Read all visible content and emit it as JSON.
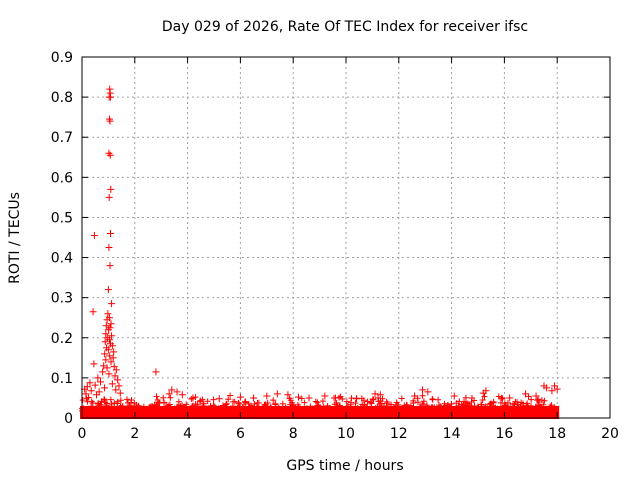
{
  "chart_data": {
    "type": "scatter",
    "title": "Day 029 of 2026, Rate Of TEC Index for receiver ifsc",
    "xlabel": "GPS time / hours",
    "ylabel": "ROTI / TECUs",
    "xlim": [
      0,
      20
    ],
    "ylim": [
      0,
      0.9
    ],
    "xticks": [
      0,
      2,
      4,
      6,
      8,
      10,
      12,
      14,
      16,
      18,
      20
    ],
    "xtick_labels": [
      "0",
      "2",
      "4",
      "6",
      "8",
      "10",
      "12",
      "14",
      "16",
      "18",
      "20"
    ],
    "yticks": [
      0,
      0.1,
      0.2,
      0.3,
      0.4,
      0.5,
      0.6,
      0.7,
      0.8,
      0.9
    ],
    "ytick_labels": [
      "0",
      "0.1",
      "0.2",
      "0.3",
      "0.4",
      "0.5",
      "0.6",
      "0.7",
      "0.8",
      "0.9"
    ],
    "grid": true,
    "marker": "+",
    "color": "#ff0000",
    "x_extent": [
      0,
      18
    ],
    "baseline_band": [
      0.0,
      0.05
    ],
    "series": [
      {
        "name": "ROTI",
        "points": [
          [
            1.05,
            0.82
          ],
          [
            1.07,
            0.81
          ],
          [
            1.03,
            0.8
          ],
          [
            1.08,
            0.8
          ],
          [
            1.04,
            0.745
          ],
          [
            1.06,
            0.74
          ],
          [
            1.02,
            0.66
          ],
          [
            1.07,
            0.655
          ],
          [
            1.09,
            0.57
          ],
          [
            1.03,
            0.55
          ],
          [
            0.47,
            0.455
          ],
          [
            1.08,
            0.46
          ],
          [
            1.02,
            0.425
          ],
          [
            1.06,
            0.38
          ],
          [
            1.0,
            0.32
          ],
          [
            1.12,
            0.285
          ],
          [
            0.42,
            0.265
          ],
          [
            0.98,
            0.26
          ],
          [
            1.04,
            0.25
          ],
          [
            0.95,
            0.245
          ],
          [
            1.1,
            0.235
          ],
          [
            0.92,
            0.23
          ],
          [
            1.06,
            0.225
          ],
          [
            1.0,
            0.22
          ],
          [
            0.9,
            0.21
          ],
          [
            1.12,
            0.205
          ],
          [
            0.96,
            0.2
          ],
          [
            1.04,
            0.195
          ],
          [
            0.88,
            0.19
          ],
          [
            1.08,
            0.185
          ],
          [
            1.15,
            0.18
          ],
          [
            0.93,
            0.175
          ],
          [
            1.0,
            0.17
          ],
          [
            1.2,
            0.165
          ],
          [
            0.86,
            0.16
          ],
          [
            1.05,
            0.155
          ],
          [
            1.18,
            0.15
          ],
          [
            0.9,
            0.145
          ],
          [
            1.1,
            0.14
          ],
          [
            0.45,
            0.135
          ],
          [
            0.82,
            0.13
          ],
          [
            1.22,
            0.128
          ],
          [
            0.95,
            0.125
          ],
          [
            1.3,
            0.12
          ],
          [
            0.78,
            0.115
          ],
          [
            2.8,
            0.115
          ],
          [
            1.02,
            0.11
          ],
          [
            1.25,
            0.105
          ],
          [
            0.6,
            0.1
          ],
          [
            1.35,
            0.095
          ],
          [
            0.7,
            0.09
          ],
          [
            0.3,
            0.088
          ],
          [
            1.15,
            0.085
          ],
          [
            0.5,
            0.082
          ],
          [
            1.4,
            0.08
          ],
          [
            0.2,
            0.078
          ],
          [
            0.85,
            0.075
          ],
          [
            0.1,
            0.072
          ],
          [
            1.28,
            0.07
          ],
          [
            0.35,
            0.068
          ],
          [
            0.65,
            0.065
          ],
          [
            1.45,
            0.062
          ],
          [
            0.15,
            0.06
          ],
          [
            0.55,
            0.058
          ],
          [
            3.4,
            0.07
          ],
          [
            3.6,
            0.065
          ],
          [
            3.3,
            0.06
          ],
          [
            3.8,
            0.058
          ],
          [
            4.2,
            0.05
          ],
          [
            5.2,
            0.048
          ],
          [
            6.0,
            0.052
          ],
          [
            6.5,
            0.05
          ],
          [
            7.0,
            0.055
          ],
          [
            7.4,
            0.06
          ],
          [
            7.8,
            0.058
          ],
          [
            8.2,
            0.052
          ],
          [
            8.6,
            0.05
          ],
          [
            9.2,
            0.055
          ],
          [
            9.6,
            0.05
          ],
          [
            10.4,
            0.048
          ],
          [
            11.1,
            0.06
          ],
          [
            11.3,
            0.058
          ],
          [
            12.9,
            0.07
          ],
          [
            13.1,
            0.065
          ],
          [
            12.6,
            0.055
          ],
          [
            14.1,
            0.055
          ],
          [
            15.3,
            0.068
          ],
          [
            15.2,
            0.062
          ],
          [
            16.2,
            0.05
          ],
          [
            16.8,
            0.06
          ],
          [
            17.2,
            0.055
          ],
          [
            17.5,
            0.08
          ],
          [
            17.6,
            0.075
          ],
          [
            17.9,
            0.08
          ],
          [
            18.0,
            0.072
          ],
          [
            17.8,
            0.068
          ]
        ]
      }
    ]
  }
}
